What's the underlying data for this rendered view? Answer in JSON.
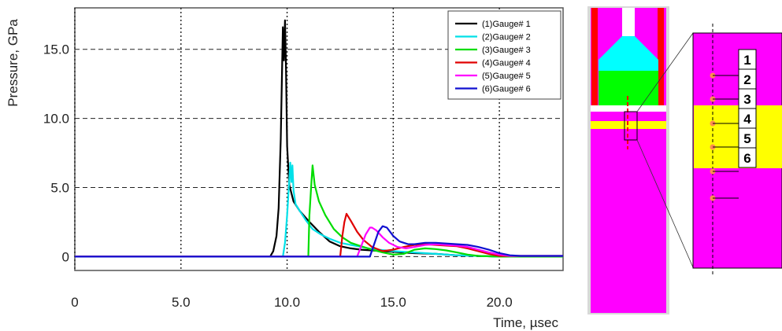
{
  "chart_data": {
    "type": "line",
    "xlabel": "Time, µsec",
    "ylabel": "Pressure, GPa",
    "xlim": [
      0,
      23
    ],
    "ylim": [
      -1,
      18
    ],
    "x_ticks": [
      0,
      5,
      10,
      15,
      20
    ],
    "x_tick_labels": [
      "0",
      "5.0",
      "10.0",
      "15.0",
      "20.0"
    ],
    "y_ticks": [
      0,
      5,
      10,
      15
    ],
    "y_tick_labels": [
      "0",
      "5.0",
      "10.0",
      "15.0"
    ],
    "grid": true,
    "legend_position": "top-right",
    "series": [
      {
        "name": "(1)Gauge# 1",
        "color": "#000000",
        "x": [
          0,
          9.2,
          9.35,
          9.5,
          9.6,
          9.7,
          9.8,
          9.85,
          9.9,
          9.95,
          10.0,
          10.1,
          10.3,
          10.6,
          11.0,
          11.5,
          12.0,
          12.5,
          13.0,
          13.5,
          14.0,
          14.5,
          15.0,
          16.0,
          17.0,
          18.0,
          19.0,
          20.0,
          23.0
        ],
        "y": [
          0,
          0,
          0.4,
          1.5,
          3.5,
          8.5,
          16.6,
          14.2,
          17.1,
          13.5,
          8.0,
          5.2,
          4.0,
          3.3,
          2.6,
          1.8,
          1.1,
          0.75,
          0.6,
          0.5,
          0.45,
          0.4,
          0.35,
          0.25,
          0.2,
          0.1,
          0.05,
          0,
          0
        ]
      },
      {
        "name": "(2)Gauge# 2",
        "color": "#00e0e8",
        "x": [
          0,
          9.8,
          9.9,
          10.0,
          10.1,
          10.15,
          10.2,
          10.25,
          10.3,
          10.4,
          10.6,
          10.9,
          11.2,
          11.6,
          12.0,
          12.5,
          13.0,
          13.5,
          14.0,
          15.0,
          16.0,
          17.0,
          18.0,
          19.0,
          20.0,
          23.0
        ],
        "y": [
          0,
          0,
          1.0,
          3.0,
          5.5,
          6.8,
          5.4,
          6.6,
          4.8,
          3.8,
          3.3,
          2.6,
          2.0,
          1.6,
          1.3,
          1.0,
          0.85,
          0.7,
          0.55,
          0.4,
          0.3,
          0.2,
          0.1,
          0.05,
          0,
          0
        ]
      },
      {
        "name": "(3)Gauge# 3",
        "color": "#00dd00",
        "x": [
          0,
          11.0,
          11.05,
          11.15,
          11.2,
          11.3,
          11.5,
          11.8,
          12.2,
          12.6,
          13.0,
          13.4,
          14.0,
          14.5,
          15.0,
          15.5,
          16.0,
          16.5,
          17.0,
          17.5,
          18.0,
          18.5,
          19.0,
          20.0,
          23.0
        ],
        "y": [
          0,
          0,
          3.0,
          5.5,
          6.6,
          5.2,
          4.0,
          3.0,
          2.0,
          1.4,
          1.0,
          0.8,
          0.5,
          0.3,
          0.15,
          0.2,
          0.5,
          0.6,
          0.55,
          0.45,
          0.3,
          0.15,
          0.05,
          0,
          0
        ]
      },
      {
        "name": "(4)Gauge# 4",
        "color": "#e00000",
        "x": [
          0,
          12.5,
          12.6,
          12.7,
          12.8,
          13.0,
          13.3,
          13.6,
          14.0,
          14.5,
          15.0,
          15.5,
          16.0,
          16.5,
          17.0,
          17.5,
          18.0,
          18.5,
          19.0,
          19.5,
          20.0,
          23.0
        ],
        "y": [
          0,
          0,
          1.5,
          2.5,
          3.1,
          2.6,
          1.8,
          1.2,
          0.7,
          0.4,
          0.5,
          0.7,
          0.85,
          0.9,
          0.85,
          0.8,
          0.75,
          0.6,
          0.4,
          0.2,
          0.05,
          0.05
        ]
      },
      {
        "name": "(5)Gauge# 5",
        "color": "#ff00ff",
        "x": [
          0,
          13.3,
          13.5,
          13.7,
          13.9,
          14.0,
          14.2,
          14.5,
          14.8,
          15.2,
          15.6,
          16.0,
          16.5,
          17.0,
          17.5,
          18.0,
          18.5,
          19.0,
          19.5,
          20.0,
          20.5,
          23.0
        ],
        "y": [
          0,
          0,
          0.8,
          1.6,
          2.1,
          2.1,
          1.9,
          1.4,
          1.0,
          0.7,
          0.6,
          0.7,
          0.85,
          0.9,
          0.85,
          0.8,
          0.7,
          0.5,
          0.3,
          0.15,
          0.05,
          0.05
        ]
      },
      {
        "name": "(6)Gauge# 6",
        "color": "#1010d0",
        "x": [
          0,
          13.9,
          14.1,
          14.3,
          14.5,
          14.7,
          15.0,
          15.3,
          15.7,
          16.0,
          16.5,
          17.0,
          17.5,
          18.0,
          18.5,
          19.0,
          19.5,
          20.0,
          20.5,
          21.0,
          23.0
        ],
        "y": [
          0,
          0,
          0.9,
          1.8,
          2.2,
          2.1,
          1.5,
          1.1,
          0.9,
          0.9,
          1.0,
          1.0,
          0.95,
          0.9,
          0.85,
          0.7,
          0.5,
          0.25,
          0.1,
          0.05,
          0.05
        ]
      }
    ]
  },
  "diagram": {
    "gauge_labels": [
      "1",
      "2",
      "3",
      "4",
      "5",
      "6"
    ],
    "colors": {
      "magenta": "#ff00ff",
      "red": "#ff0000",
      "cyan": "#00ffff",
      "green": "#00ff00",
      "yellow": "#ffff00",
      "frame": "#d0d0d0",
      "gauge_marker": "#ff8c50"
    }
  }
}
